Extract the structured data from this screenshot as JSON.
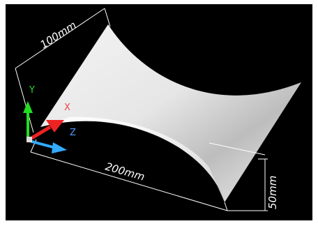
{
  "dimensions": {
    "depth": "100mm",
    "length": "200mm",
    "height": "50mm"
  },
  "axes": {
    "x": "X",
    "y": "Y",
    "z": "Z"
  }
}
